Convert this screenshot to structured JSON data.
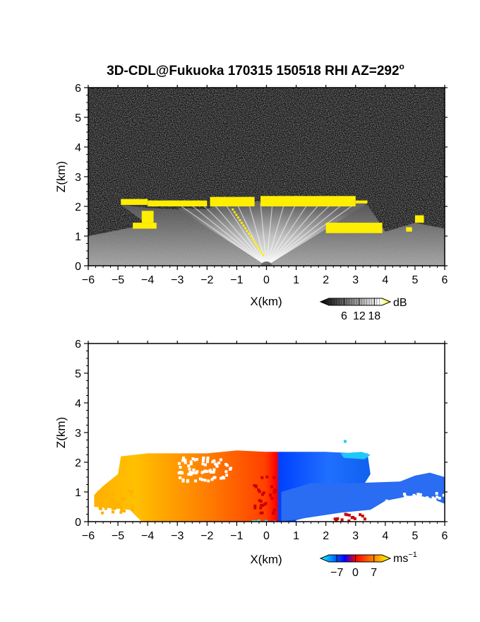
{
  "title": "3D-CDL@Fukuoka 170315 150518 RHI AZ=292",
  "title_superscript": "o",
  "chart_data": [
    {
      "type": "heatmap",
      "name": "backscatter",
      "xlabel": "X(km)",
      "ylabel": "Z(km)",
      "xlim": [
        -6,
        6
      ],
      "ylim": [
        0,
        6
      ],
      "xticks": [
        "-6",
        "-5",
        "-4",
        "-3",
        "-2",
        "-1",
        "0",
        "1",
        "2",
        "3",
        "4",
        "5",
        "6"
      ],
      "yticks": [
        "0",
        "1",
        "2",
        "3",
        "4",
        "5",
        "6"
      ],
      "colorbar": {
        "unit": "dB",
        "ticks": [
          "6",
          "12",
          "18"
        ],
        "tick_values": [
          6,
          12,
          18
        ],
        "range": [
          0,
          21
        ],
        "colors": [
          "#000000",
          "#ffffff",
          "#ffff00"
        ]
      },
      "cloud_top_km": [
        {
          "x": -4.9,
          "z": 2.2
        },
        {
          "x": -4.0,
          "z": 2.1
        },
        {
          "x": -3.0,
          "z": 2.05
        },
        {
          "x": -2.0,
          "z": 2.0
        },
        {
          "x": -1.5,
          "z": 2.25
        },
        {
          "x": -0.5,
          "z": 2.25
        },
        {
          "x": 0.0,
          "z": 2.3
        },
        {
          "x": 1.0,
          "z": 2.3
        },
        {
          "x": 2.0,
          "z": 2.3
        },
        {
          "x": 3.0,
          "z": 2.2
        },
        {
          "x": 3.4,
          "z": 2.2
        },
        {
          "x": 4.0,
          "z": 1.3
        },
        {
          "x": 5.0,
          "z": 1.6
        },
        {
          "x": 6.0,
          "z": 1.4
        }
      ]
    },
    {
      "type": "heatmap",
      "name": "doppler_velocity",
      "xlabel": "X(km)",
      "ylabel": "Z(km)",
      "xlim": [
        -6,
        6
      ],
      "ylim": [
        0,
        6
      ],
      "xticks": [
        "-6",
        "-5",
        "-4",
        "-3",
        "-2",
        "-1",
        "0",
        "1",
        "2",
        "3",
        "4",
        "5",
        "6"
      ],
      "yticks": [
        "0",
        "1",
        "2",
        "3",
        "4",
        "5",
        "6"
      ],
      "colorbar": {
        "unit": "ms",
        "unit_superscript": "−1",
        "ticks": [
          "−7",
          "0",
          "7"
        ],
        "tick_values": [
          -7,
          0,
          7
        ],
        "range": [
          -10,
          10
        ],
        "colors": [
          "#00ffff",
          "#0000ff",
          "#ff0000",
          "#ffff00"
        ]
      },
      "velocity_profile": [
        {
          "x": -5.5,
          "v": 5
        },
        {
          "x": -4.0,
          "v": 6
        },
        {
          "x": -3.0,
          "v": 5
        },
        {
          "x": -2.0,
          "v": 3
        },
        {
          "x": -1.0,
          "v": 1
        },
        {
          "x": -0.1,
          "v": 0
        },
        {
          "x": 0.1,
          "v": -7
        },
        {
          "x": 2.0,
          "v": -6
        },
        {
          "x": 3.5,
          "v": -9
        },
        {
          "x": 6.0,
          "v": -6
        }
      ]
    }
  ]
}
